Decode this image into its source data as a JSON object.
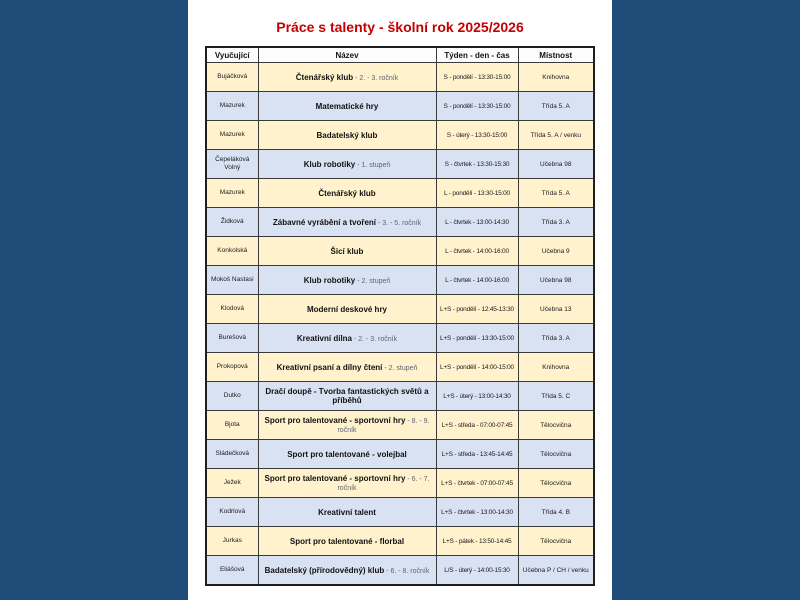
{
  "page": {
    "title": "Práce s talenty - školní rok 2025/2026"
  },
  "colors": {
    "background": "#204C7A",
    "page": "#FFFFFF",
    "title": "#C40000",
    "row_cream": "#FFF2CC",
    "row_blue": "#D9E2F3",
    "name_suffix_text": "#5A6472"
  },
  "table": {
    "headers": [
      "Vyučující",
      "Název",
      "Týden - den - čas",
      "Místnost"
    ],
    "rows": [
      {
        "teacher": "Bujáčková",
        "name": "Čtenářský klub",
        "name_suffix": " - 2. - 3. ročník",
        "time": "S - pondělí - 13:30-15:00",
        "room": "Knihovna"
      },
      {
        "teacher": "Mazurek",
        "name": "Matematické hry",
        "name_suffix": "",
        "time": "S - pondělí - 13:30-15:00",
        "room": "Třída 5. A"
      },
      {
        "teacher": "Mazurek",
        "name": "Badatelský klub",
        "name_suffix": "",
        "time": "S - úterý - 13:30-15:00",
        "room": "Třída 5. A / venku"
      },
      {
        "teacher": "Čepeláková Volný",
        "name": "Klub robotiky",
        "name_suffix": " - 1. stupeň",
        "time": "S - čtvrtek - 13:30-15:30",
        "room": "Učebna 98"
      },
      {
        "teacher": "Mazurek",
        "name": "Čtenářský klub",
        "name_suffix": "",
        "time": "L - pondělí - 13:30-15:00",
        "room": "Třída 5. A"
      },
      {
        "teacher": "Židková",
        "name": "Zábavné vyrábění a tvoření",
        "name_suffix": " - 3. - 5. ročník",
        "time": "L - čtvrtek - 13:00-14:30",
        "room": "Třída 3. A"
      },
      {
        "teacher": "Konkolská",
        "name": "Šicí klub",
        "name_suffix": "",
        "time": "L - čtvrtek - 14:00-16:00",
        "room": "Učebna 9"
      },
      {
        "teacher": "Mokoš Nastasi",
        "name": "Klub robotiky",
        "name_suffix": " - 2. stupeň",
        "time": "L - čtvrtek - 14:00-16:00",
        "room": "Učebna 98"
      },
      {
        "teacher": "Klodová",
        "name": "Moderní deskové hry",
        "name_suffix": "",
        "time": "L+S - pondělí - 12:45-13:30",
        "room": "Učebna 13"
      },
      {
        "teacher": "Burešová",
        "name": "Kreativní dílna",
        "name_suffix": " - 2. - 3. ročník",
        "time": "L+S - pondělí - 13:30-15:00",
        "room": "Třída 3. A"
      },
      {
        "teacher": "Prokopová",
        "name": "Kreativní psaní a dílny čtení",
        "name_suffix": " - 2. stupeň",
        "time": "L+S - pondělí - 14:00-15:00",
        "room": "Knihovna"
      },
      {
        "teacher": "Dutko",
        "name": "Dračí doupě - Tvorba fantastických světů a příběhů",
        "name_suffix": "",
        "time": "L+S - úterý - 13:00-14:30",
        "room": "Třída 5. C"
      },
      {
        "teacher": "Bjota",
        "name": "Sport pro talentované - sportovní hry",
        "name_suffix": " - 8. - 9. ročník",
        "time": "L+S - středa - 07:00-07:45",
        "room": "Tělocvična"
      },
      {
        "teacher": "Sládečková",
        "name": "Sport pro talentované - volejbal",
        "name_suffix": "",
        "time": "L+S - středa - 13:45-14:45",
        "room": "Tělocvična"
      },
      {
        "teacher": "Ježek",
        "name": "Sport pro talentované - sportovní hry",
        "name_suffix": " - 6. - 7. ročník",
        "time": "L+S - čtvrtek - 07:00-07:45",
        "room": "Tělocvična"
      },
      {
        "teacher": "Kodrlová",
        "name": "Kreativní talent",
        "name_suffix": "",
        "time": "L+S - čtvrtek - 13:00-14:30",
        "room": "Třída 4. B"
      },
      {
        "teacher": "Jurkas",
        "name": "Sport pro talentované - florbal",
        "name_suffix": "",
        "time": "L+S - pátek - 13:50-14:45",
        "room": "Tělocvična"
      },
      {
        "teacher": "Eliášová",
        "name": "Badatelský (přírodovědný) klub",
        "name_suffix": " - 6. - 8. ročník",
        "time": "L/S - úterý - 14:00-15:30",
        "room": "Učebna P / CH / venku"
      }
    ]
  }
}
